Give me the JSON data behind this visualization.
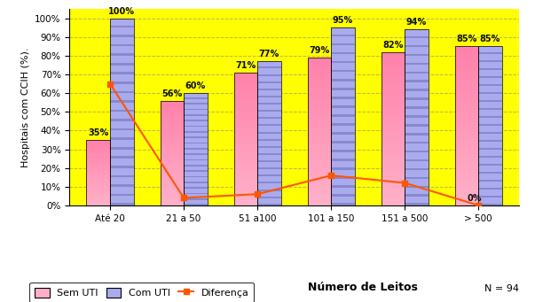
{
  "categories": [
    "Até 20",
    "21 a 50",
    "51 a100",
    "101 a 150",
    "151 a 500",
    "> 500"
  ],
  "sem_uti": [
    35,
    56,
    71,
    79,
    82,
    85
  ],
  "com_uti": [
    100,
    60,
    77,
    95,
    94,
    85
  ],
  "diferenca": [
    65,
    4,
    6,
    16,
    12,
    0
  ],
  "sem_uti_color_bottom": "#FFB0C8",
  "sem_uti_color_top": "#FF80AA",
  "com_uti_color_bottom": "#8888CC",
  "com_uti_color_top": "#AAAAEE",
  "diferenca_color": "#FF5500",
  "background_color": "#FFFF00",
  "ylabel": "Hospitais com CCIH (%).",
  "xlabel": "Número de Leitos",
  "ylim": [
    0,
    105
  ],
  "yticks": [
    0,
    10,
    20,
    30,
    40,
    50,
    60,
    70,
    80,
    90,
    100
  ],
  "ytick_labels": [
    "0%",
    "10%",
    "20%",
    "30%",
    "40%",
    "50%",
    "60%",
    "70%",
    "80%",
    "90%",
    "100%"
  ],
  "n_label": "N = 94",
  "bar_width": 0.32,
  "legend_labels": [
    "Sem UTI",
    "Com UTI",
    "Diferença"
  ]
}
